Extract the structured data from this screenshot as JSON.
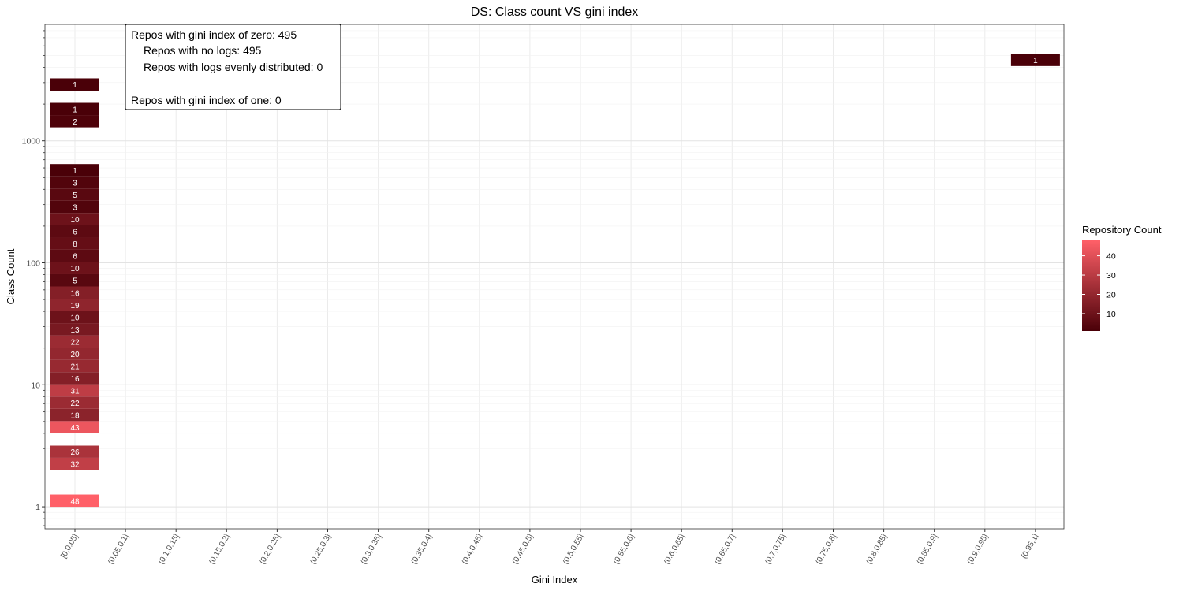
{
  "chart_data": {
    "type": "heatmap",
    "title": "DS: Class count VS gini index",
    "xlabel": "Gini Index",
    "ylabel": "Class Count",
    "x_scale": "categorical",
    "y_scale": "log10",
    "ylim": [
      0.66,
      9000
    ],
    "grid": true,
    "categories": [
      "[0,0.05]",
      "(0.05,0.1]",
      "(0.1,0.15]",
      "(0.15,0.2]",
      "(0.2,0.25]",
      "(0.25,0.3]",
      "(0.3,0.35]",
      "(0.35,0.4]",
      "(0.4,0.45]",
      "(0.45,0.5]",
      "(0.5,0.55]",
      "(0.55,0.6]",
      "(0.6,0.65]",
      "(0.65,0.7]",
      "(0.7,0.75]",
      "(0.75,0.8]",
      "(0.8,0.85]",
      "(0.85,0.9]",
      "(0.9,0.95]",
      "(0.95,1]"
    ],
    "y_ticks": [
      1,
      10,
      100,
      1000
    ],
    "y_tick_labels": [
      "1",
      "10",
      "100",
      "1000"
    ],
    "color_low": "#4a0008",
    "color_high": "#ff6068",
    "legend": {
      "title": "Repository Count",
      "position": "right",
      "min": 1,
      "max": 48,
      "ticks": [
        10,
        20,
        30,
        40
      ],
      "tick_labels": [
        "10",
        "20",
        "30",
        "40"
      ]
    },
    "cells": [
      {
        "x": "[0,0.05]",
        "y_low": 1,
        "y_high": 1.26,
        "count": 48
      },
      {
        "x": "[0,0.05]",
        "y_low": 2,
        "y_high": 2.52,
        "count": 32
      },
      {
        "x": "[0,0.05]",
        "y_low": 2.52,
        "y_high": 3.17,
        "count": 26
      },
      {
        "x": "[0,0.05]",
        "y_low": 4,
        "y_high": 5.04,
        "count": 43
      },
      {
        "x": "[0,0.05]",
        "y_low": 5.04,
        "y_high": 6.35,
        "count": 18
      },
      {
        "x": "[0,0.05]",
        "y_low": 6.35,
        "y_high": 8,
        "count": 22
      },
      {
        "x": "[0,0.05]",
        "y_low": 8,
        "y_high": 10.1,
        "count": 31
      },
      {
        "x": "[0,0.05]",
        "y_low": 10.1,
        "y_high": 12.7,
        "count": 16
      },
      {
        "x": "[0,0.05]",
        "y_low": 12.7,
        "y_high": 16,
        "count": 21
      },
      {
        "x": "[0,0.05]",
        "y_low": 16,
        "y_high": 20.2,
        "count": 20
      },
      {
        "x": "[0,0.05]",
        "y_low": 20.2,
        "y_high": 25.4,
        "count": 22
      },
      {
        "x": "[0,0.05]",
        "y_low": 25.4,
        "y_high": 32,
        "count": 13
      },
      {
        "x": "[0,0.05]",
        "y_low": 32,
        "y_high": 40.3,
        "count": 10
      },
      {
        "x": "[0,0.05]",
        "y_low": 40.3,
        "y_high": 50.8,
        "count": 19
      },
      {
        "x": "[0,0.05]",
        "y_low": 50.8,
        "y_high": 64,
        "count": 16
      },
      {
        "x": "[0,0.05]",
        "y_low": 64,
        "y_high": 80.6,
        "count": 5
      },
      {
        "x": "[0,0.05]",
        "y_low": 80.6,
        "y_high": 102,
        "count": 10
      },
      {
        "x": "[0,0.05]",
        "y_low": 102,
        "y_high": 128,
        "count": 6
      },
      {
        "x": "[0,0.05]",
        "y_low": 128,
        "y_high": 161,
        "count": 8
      },
      {
        "x": "[0,0.05]",
        "y_low": 161,
        "y_high": 203,
        "count": 6
      },
      {
        "x": "[0,0.05]",
        "y_low": 203,
        "y_high": 256,
        "count": 10
      },
      {
        "x": "[0,0.05]",
        "y_low": 256,
        "y_high": 323,
        "count": 3
      },
      {
        "x": "[0,0.05]",
        "y_low": 323,
        "y_high": 406,
        "count": 5
      },
      {
        "x": "[0,0.05]",
        "y_low": 406,
        "y_high": 512,
        "count": 3
      },
      {
        "x": "[0,0.05]",
        "y_low": 512,
        "y_high": 645,
        "count": 1
      },
      {
        "x": "[0,0.05]",
        "y_low": 1290,
        "y_high": 1625,
        "count": 2
      },
      {
        "x": "[0,0.05]",
        "y_low": 1625,
        "y_high": 2048,
        "count": 1
      },
      {
        "x": "[0,0.05]",
        "y_low": 2580,
        "y_high": 3250,
        "count": 1
      },
      {
        "x": "(0.95,1]",
        "y_low": 4100,
        "y_high": 5160,
        "count": 1
      }
    ],
    "annotation": {
      "lines": [
        "Repos with gini index of zero: 495",
        "Repos with no logs: 495",
        "Repos with logs evenly distributed: 0",
        "",
        "Repos with gini index of one: 0"
      ]
    }
  }
}
